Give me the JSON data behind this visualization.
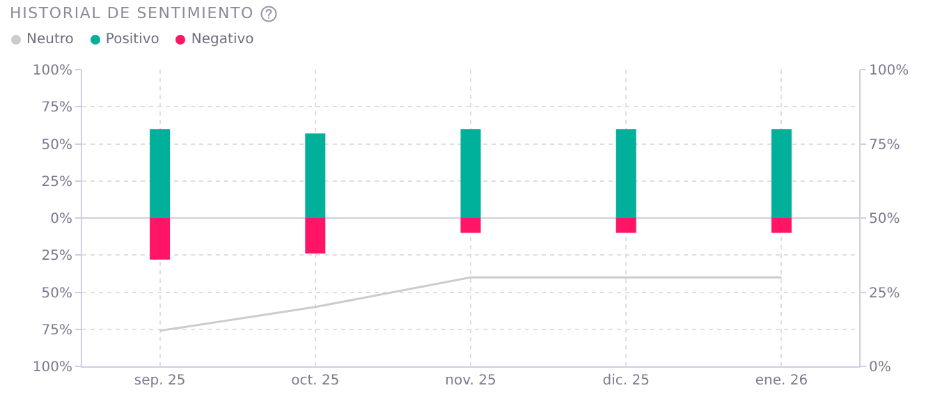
{
  "chart_data": {
    "type": "bar",
    "title": "HISTORIAL DE SENTIMIENTO",
    "categories": [
      "sep. 25",
      "oct. 25",
      "nov. 25",
      "dic. 25",
      "ene. 26"
    ],
    "series": [
      {
        "name": "Neutro",
        "type": "line",
        "axis": "y2",
        "color": "#cccccc",
        "values": [
          12,
          20,
          30,
          30,
          30
        ]
      },
      {
        "name": "Positivo",
        "color": "#00b09b",
        "values": [
          60,
          57,
          60,
          60,
          60
        ]
      },
      {
        "name": "Negativo",
        "color": "#ff1466",
        "values": [
          -28,
          -24,
          -10,
          -10,
          -10
        ]
      }
    ],
    "stacked": true,
    "ylim": [
      -100,
      100
    ],
    "yticks": [
      {
        "value": -100,
        "label": "100%"
      },
      {
        "value": -75,
        "label": "75%"
      },
      {
        "value": -50,
        "label": "50%"
      },
      {
        "value": -25,
        "label": "25%"
      },
      {
        "value": 0,
        "label": "0%"
      },
      {
        "value": 25,
        "label": "25%"
      },
      {
        "value": 50,
        "label": "50%"
      },
      {
        "value": 75,
        "label": "75%"
      },
      {
        "value": 100,
        "label": "100%"
      }
    ],
    "y2lim": [
      0,
      100
    ],
    "y2ticks": [
      {
        "value": 0,
        "label": "0%"
      },
      {
        "value": 25,
        "label": "25%"
      },
      {
        "value": 50,
        "label": "50%"
      },
      {
        "value": 75,
        "label": "75%"
      },
      {
        "value": 100,
        "label": "100%"
      }
    ],
    "grid": true,
    "legend": "top left",
    "marker": "none"
  }
}
